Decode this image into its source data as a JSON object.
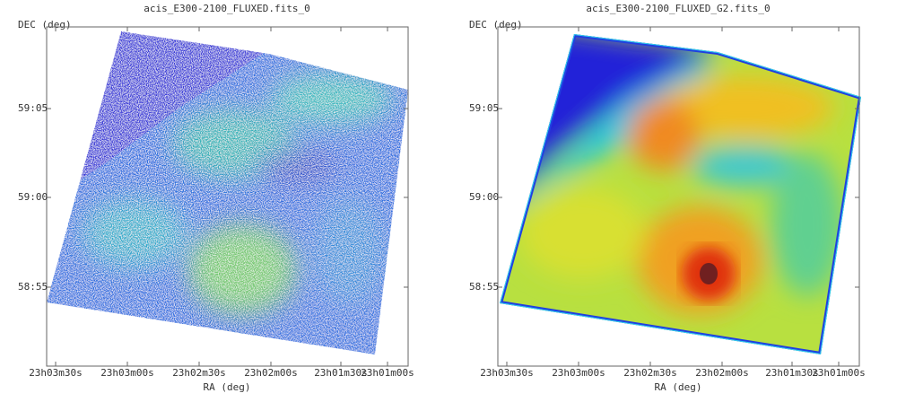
{
  "panels": [
    {
      "title": "acis_E300-2100_FLUXED.fits_0",
      "y_label": "DEC (deg)",
      "x_label": "RA (deg)",
      "y_ticks": [
        "59:05",
        "59:00",
        "58:55"
      ],
      "x_ticks": [
        "23h03m30s",
        "23h03m00s",
        "23h02m30s",
        "23h02m00s",
        "23h01m30s",
        "23h01m00s"
      ]
    },
    {
      "title": "acis_E300-2100_FLUXED_G2.fits_0",
      "y_label": "DEC (deg)",
      "x_label": "RA (deg)",
      "y_ticks": [
        "59:05",
        "59:00",
        "58:55"
      ],
      "x_ticks": [
        "23h03m30s",
        "23h03m00s",
        "23h02m30s",
        "23h02m00s",
        "23h01m30s",
        "23h01m00s"
      ]
    }
  ]
}
